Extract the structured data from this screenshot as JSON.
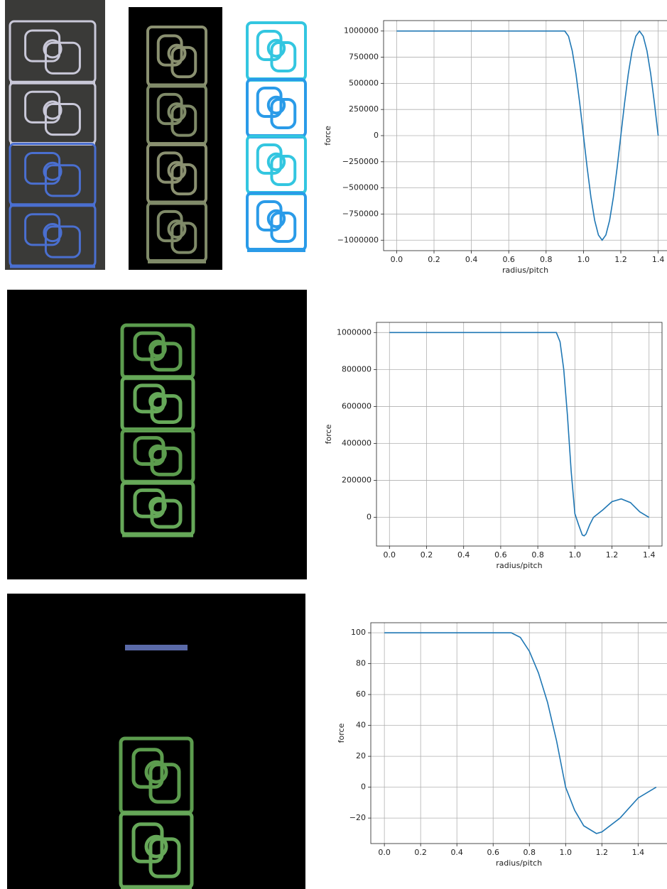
{
  "chart_data": [
    {
      "type": "line",
      "xlabel": "radius/pitch",
      "ylabel": "force",
      "color": "#1f77b4",
      "grid": true,
      "x": [
        0,
        0.9,
        0.92,
        0.94,
        0.96,
        0.98,
        1.0,
        1.02,
        1.04,
        1.06,
        1.08,
        1.1,
        1.12,
        1.14,
        1.16,
        1.18,
        1.2,
        1.22,
        1.24,
        1.26,
        1.28,
        1.3,
        1.32,
        1.34,
        1.36,
        1.38,
        1.4
      ],
      "values": [
        1000000,
        1000000,
        950000,
        810000,
        590000,
        310000,
        0,
        -310000,
        -590000,
        -810000,
        -950000,
        -1000000,
        -950000,
        -810000,
        -590000,
        -310000,
        0,
        310000,
        590000,
        810000,
        950000,
        1000000,
        950000,
        810000,
        590000,
        310000,
        0
      ],
      "xlim": [
        -0.07,
        1.47
      ],
      "ylim": [
        -1100000,
        1100000
      ],
      "xticks": [
        {
          "value": 0,
          "label": "0.0"
        },
        0.2,
        0.4,
        0.6,
        0.8,
        {
          "value": 1,
          "label": "1.0"
        },
        1.2,
        1.4
      ],
      "yticks": [
        {
          "value": -1000000,
          "label": "−1000000"
        },
        {
          "value": -750000,
          "label": "−750000"
        },
        {
          "value": -500000,
          "label": "−500000"
        },
        {
          "value": -250000,
          "label": "−250000"
        },
        0,
        250000,
        500000,
        750000,
        1000000
      ]
    },
    {
      "type": "line",
      "xlabel": "radius/pitch",
      "ylabel": "force",
      "color": "#1f77b4",
      "grid": true,
      "x": [
        0,
        0.9,
        0.92,
        0.94,
        0.96,
        0.98,
        1.0,
        1.02,
        1.04,
        1.05,
        1.06,
        1.08,
        1.1,
        1.15,
        1.2,
        1.25,
        1.3,
        1.35,
        1.4
      ],
      "values": [
        1000000,
        1000000,
        950000,
        800000,
        550000,
        250000,
        20000,
        -40000,
        -95000,
        -100000,
        -90000,
        -40000,
        0,
        40000,
        85000,
        100000,
        80000,
        30000,
        0
      ],
      "xlim": [
        -0.07,
        1.47
      ],
      "ylim": [
        -155000,
        1055000
      ],
      "xticks": [
        {
          "value": 0,
          "label": "0.0"
        },
        0.2,
        0.4,
        0.6,
        0.8,
        {
          "value": 1,
          "label": "1.0"
        },
        1.2,
        1.4
      ],
      "yticks": [
        0,
        200000,
        400000,
        600000,
        800000,
        1000000
      ]
    },
    {
      "type": "line",
      "xlabel": "radius/pitch",
      "ylabel": "force",
      "color": "#1f77b4",
      "grid": true,
      "x": [
        0,
        0.7,
        0.75,
        0.8,
        0.85,
        0.9,
        0.95,
        1.0,
        1.05,
        1.1,
        1.17,
        1.2,
        1.3,
        1.4,
        1.5
      ],
      "values": [
        100,
        100,
        97,
        88,
        74,
        55,
        30,
        0,
        -15,
        -25,
        -30,
        -29,
        -20,
        -7,
        0
      ],
      "xlim": [
        -0.075,
        1.575
      ],
      "ylim": [
        -36.5,
        106.5
      ],
      "xticks": [
        {
          "value": 0,
          "label": "0.0"
        },
        0.2,
        0.4,
        0.6,
        0.8,
        {
          "value": 1,
          "label": "1.0"
        },
        1.2,
        1.4
      ],
      "yticks": [
        {
          "value": -20,
          "label": "−20"
        },
        0,
        20,
        40,
        60,
        80,
        100
      ]
    }
  ]
}
